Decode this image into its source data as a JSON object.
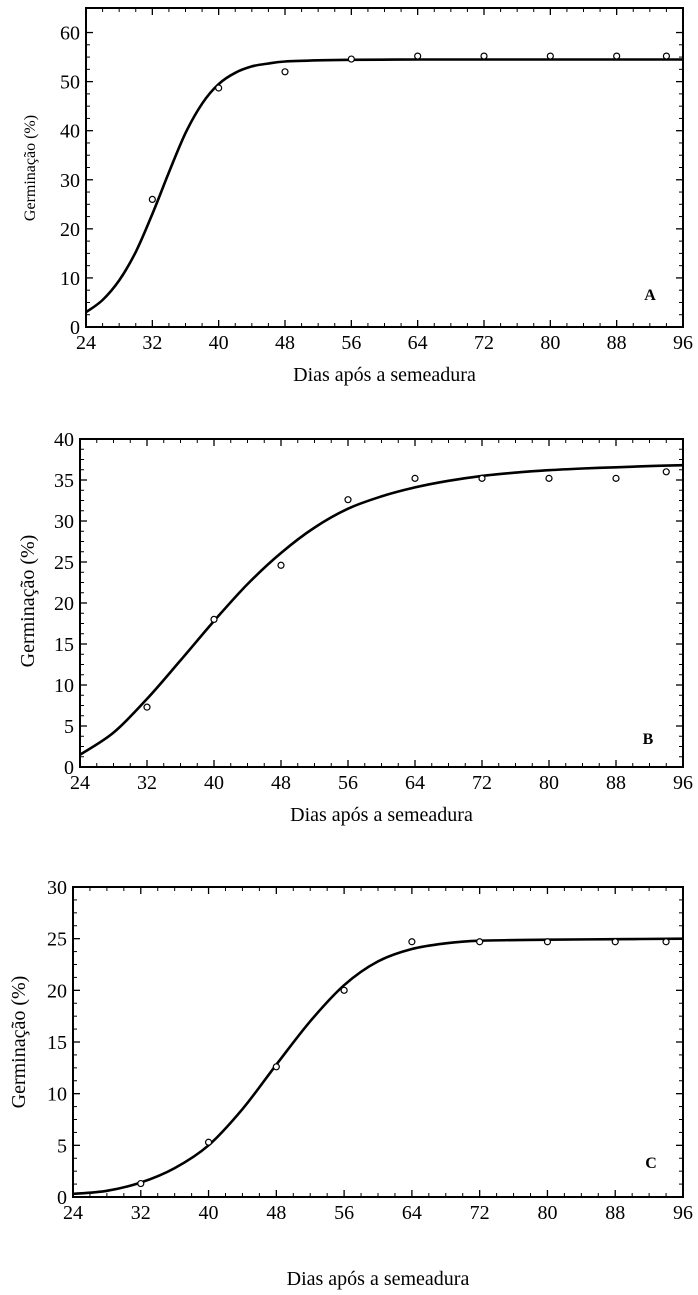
{
  "chart_data": [
    {
      "type": "line",
      "panel_label": "A",
      "xlabel": "Dias após a semeadura",
      "ylabel": "Germinação (%)",
      "xlim": [
        24,
        96
      ],
      "ylim": [
        0,
        65
      ],
      "xticks": [
        24,
        32,
        40,
        48,
        56,
        64,
        72,
        80,
        88,
        96
      ],
      "yticks": [
        0,
        10,
        20,
        30,
        40,
        50,
        60
      ],
      "grid": false,
      "observed": {
        "x": [
          32,
          40,
          48,
          56,
          64,
          72,
          80,
          88,
          94
        ],
        "y": [
          26,
          48.7,
          52,
          54.6,
          55.2,
          55.2,
          55.2,
          55.2,
          55.2
        ]
      },
      "fitted_curve": {
        "x": [
          24,
          26,
          28,
          30,
          32,
          34,
          36,
          38,
          40,
          42,
          44,
          46,
          48,
          52,
          56,
          64,
          72,
          80,
          88,
          96
        ],
        "y": [
          3,
          5.5,
          9.5,
          15.3,
          23,
          31.5,
          39.5,
          45.5,
          49.5,
          51.8,
          53.1,
          53.7,
          54.1,
          54.35,
          54.45,
          54.5,
          54.5,
          54.5,
          54.5,
          54.5
        ]
      }
    },
    {
      "type": "line",
      "panel_label": "B",
      "xlabel": "Dias após a semeadura",
      "ylabel": "Germinação (%)",
      "xlim": [
        24,
        96
      ],
      "ylim": [
        0,
        40
      ],
      "xticks": [
        24,
        32,
        40,
        48,
        56,
        64,
        72,
        80,
        88,
        96
      ],
      "yticks": [
        0,
        5,
        10,
        15,
        20,
        25,
        30,
        35,
        40
      ],
      "grid": false,
      "observed": {
        "x": [
          32,
          40,
          48,
          56,
          64,
          72,
          80,
          88,
          94
        ],
        "y": [
          7.3,
          18,
          24.6,
          32.6,
          35.2,
          35.2,
          35.2,
          35.2,
          36
        ]
      },
      "fitted_curve": {
        "x": [
          24,
          28,
          32,
          36,
          40,
          44,
          48,
          52,
          56,
          60,
          64,
          68,
          72,
          76,
          80,
          84,
          88,
          92,
          96
        ],
        "y": [
          1.5,
          4.2,
          8.3,
          13,
          17.8,
          22.3,
          26.1,
          29.2,
          31.5,
          33,
          34.1,
          34.9,
          35.5,
          35.9,
          36.2,
          36.4,
          36.55,
          36.7,
          36.8
        ]
      }
    },
    {
      "type": "line",
      "panel_label": "C",
      "xlabel": "Dias após a semeadura",
      "ylabel": "Germinação (%)",
      "xlim": [
        24,
        96
      ],
      "ylim": [
        0,
        30
      ],
      "xticks": [
        24,
        32,
        40,
        48,
        56,
        64,
        72,
        80,
        88,
        96
      ],
      "yticks": [
        0,
        5,
        10,
        15,
        20,
        25,
        30
      ],
      "grid": false,
      "observed": {
        "x": [
          32,
          40,
          48,
          56,
          64,
          72,
          80,
          88,
          94
        ],
        "y": [
          1.3,
          5.3,
          12.6,
          20,
          24.7,
          24.7,
          24.7,
          24.7,
          24.7
        ]
      },
      "fitted_curve": {
        "x": [
          24,
          28,
          32,
          36,
          40,
          44,
          48,
          52,
          56,
          60,
          64,
          68,
          72,
          80,
          88,
          96
        ],
        "y": [
          0.3,
          0.6,
          1.4,
          2.8,
          5,
          8.5,
          12.8,
          17,
          20.5,
          22.8,
          24,
          24.55,
          24.8,
          24.9,
          24.95,
          25
        ]
      }
    }
  ]
}
